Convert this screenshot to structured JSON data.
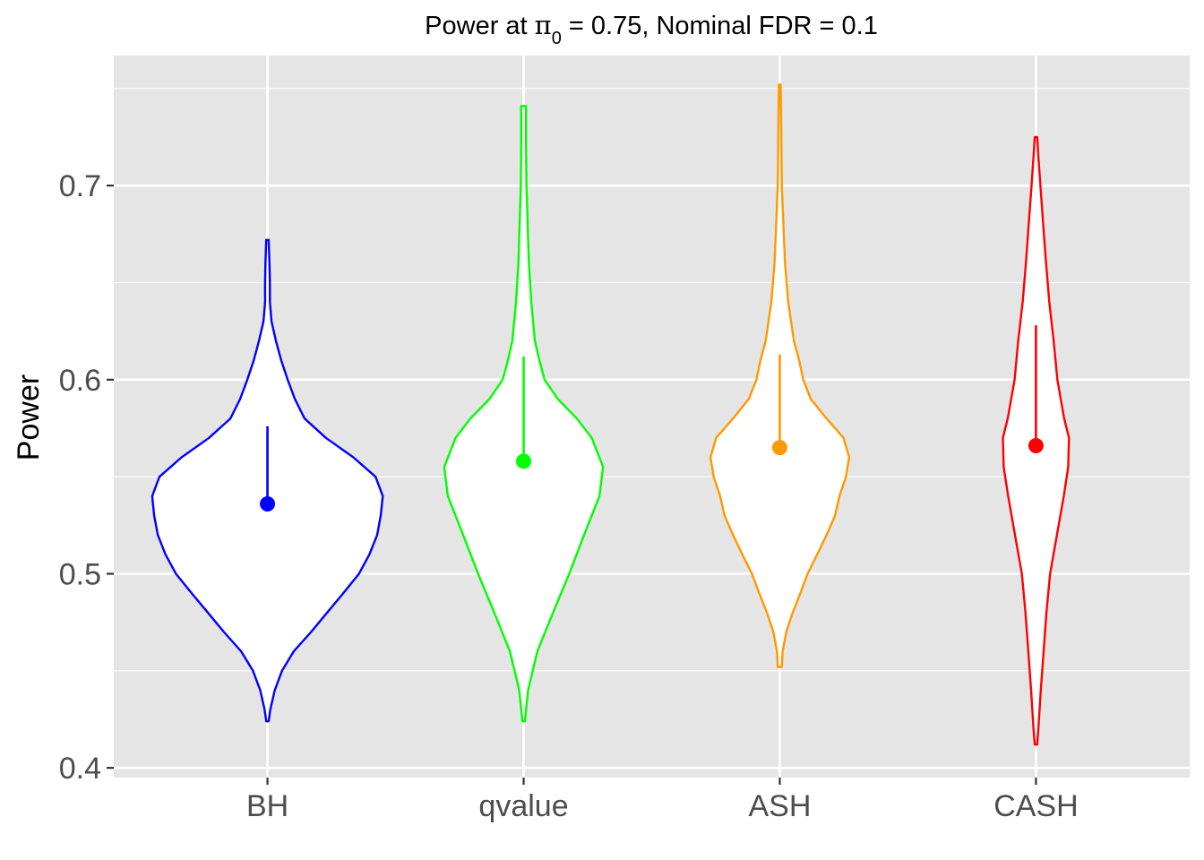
{
  "chart_data": {
    "type": "violin",
    "title_prefix": "Power at ",
    "title_symbol": "π",
    "title_subscript": "0",
    "title_suffix": " = 0.75, Nominal FDR = 0.1",
    "xlabel": "",
    "ylabel": "Power",
    "ylim": [
      0.395,
      0.767
    ],
    "yticks": [
      0.4,
      0.5,
      0.6,
      0.7
    ],
    "ytick_labels": [
      "0.4",
      "0.5",
      "0.6",
      "0.7"
    ],
    "grid": true,
    "legend": "none",
    "categories": [
      "BH",
      "qvalue",
      "ASH",
      "CASH"
    ],
    "series": [
      {
        "category": "BH",
        "color": "#0000ff",
        "mean": 0.536,
        "mean_plus_sd": 0.576,
        "min": 0.424,
        "max": 0.672,
        "profile": [
          [
            0.424,
            0.003
          ],
          [
            0.43,
            0.007
          ],
          [
            0.44,
            0.018
          ],
          [
            0.45,
            0.036
          ],
          [
            0.46,
            0.065
          ],
          [
            0.47,
            0.108
          ],
          [
            0.48,
            0.148
          ],
          [
            0.49,
            0.188
          ],
          [
            0.5,
            0.227
          ],
          [
            0.51,
            0.253
          ],
          [
            0.52,
            0.272
          ],
          [
            0.53,
            0.281
          ],
          [
            0.54,
            0.286
          ],
          [
            0.55,
            0.268
          ],
          [
            0.56,
            0.213
          ],
          [
            0.57,
            0.145
          ],
          [
            0.58,
            0.092
          ],
          [
            0.59,
            0.068
          ],
          [
            0.6,
            0.05
          ],
          [
            0.61,
            0.034
          ],
          [
            0.62,
            0.021
          ],
          [
            0.63,
            0.01
          ],
          [
            0.64,
            0.006
          ],
          [
            0.65,
            0.006
          ],
          [
            0.66,
            0.005
          ],
          [
            0.672,
            0.003
          ]
        ]
      },
      {
        "category": "qvalue",
        "color": "#00ff00",
        "mean": 0.558,
        "mean_plus_sd": 0.612,
        "min": 0.424,
        "max": 0.741,
        "profile": [
          [
            0.424,
            0.003
          ],
          [
            0.44,
            0.011
          ],
          [
            0.46,
            0.034
          ],
          [
            0.48,
            0.073
          ],
          [
            0.5,
            0.113
          ],
          [
            0.52,
            0.15
          ],
          [
            0.54,
            0.188
          ],
          [
            0.555,
            0.197
          ],
          [
            0.57,
            0.169
          ],
          [
            0.58,
            0.132
          ],
          [
            0.59,
            0.085
          ],
          [
            0.6,
            0.052
          ],
          [
            0.61,
            0.039
          ],
          [
            0.62,
            0.028
          ],
          [
            0.64,
            0.019
          ],
          [
            0.66,
            0.013
          ],
          [
            0.68,
            0.01
          ],
          [
            0.7,
            0.007
          ],
          [
            0.72,
            0.006
          ],
          [
            0.741,
            0.006
          ]
        ]
      },
      {
        "category": "ASH",
        "color": "#ff9900",
        "mean": 0.565,
        "mean_plus_sd": 0.613,
        "min": 0.452,
        "max": 0.752,
        "profile": [
          [
            0.452,
            0.005
          ],
          [
            0.46,
            0.007
          ],
          [
            0.47,
            0.016
          ],
          [
            0.48,
            0.032
          ],
          [
            0.49,
            0.051
          ],
          [
            0.5,
            0.069
          ],
          [
            0.51,
            0.093
          ],
          [
            0.52,
            0.116
          ],
          [
            0.53,
            0.137
          ],
          [
            0.54,
            0.148
          ],
          [
            0.55,
            0.164
          ],
          [
            0.56,
            0.172
          ],
          [
            0.57,
            0.158
          ],
          [
            0.58,
            0.116
          ],
          [
            0.59,
            0.077
          ],
          [
            0.6,
            0.058
          ],
          [
            0.61,
            0.048
          ],
          [
            0.62,
            0.035
          ],
          [
            0.64,
            0.021
          ],
          [
            0.66,
            0.013
          ],
          [
            0.68,
            0.009
          ],
          [
            0.7,
            0.005
          ],
          [
            0.72,
            0.004
          ],
          [
            0.74,
            0.003
          ],
          [
            0.752,
            0.002
          ]
        ]
      },
      {
        "category": "CASH",
        "color": "#ff0000",
        "mean": 0.566,
        "mean_plus_sd": 0.628,
        "min": 0.412,
        "max": 0.725,
        "profile": [
          [
            0.412,
            0.003
          ],
          [
            0.42,
            0.006
          ],
          [
            0.44,
            0.012
          ],
          [
            0.46,
            0.019
          ],
          [
            0.48,
            0.026
          ],
          [
            0.5,
            0.035
          ],
          [
            0.52,
            0.052
          ],
          [
            0.54,
            0.069
          ],
          [
            0.555,
            0.08
          ],
          [
            0.57,
            0.082
          ],
          [
            0.58,
            0.07
          ],
          [
            0.6,
            0.053
          ],
          [
            0.62,
            0.044
          ],
          [
            0.64,
            0.033
          ],
          [
            0.66,
            0.025
          ],
          [
            0.68,
            0.018
          ],
          [
            0.7,
            0.011
          ],
          [
            0.715,
            0.006
          ],
          [
            0.725,
            0.003
          ]
        ]
      }
    ]
  }
}
